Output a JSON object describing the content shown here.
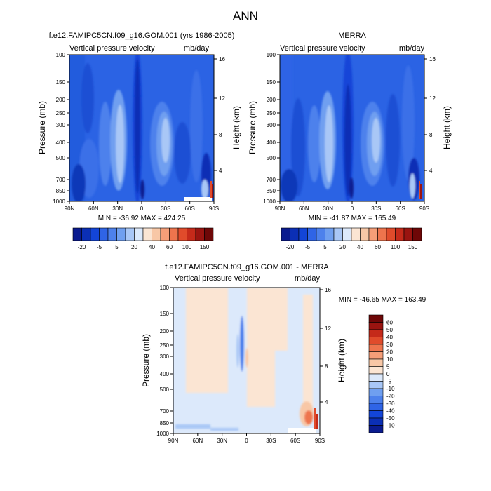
{
  "figure": {
    "title": "ANN",
    "panels": [
      {
        "id": "model",
        "title": "f.e12.FAMIPC5CN.f09_g16.GOM.001 (yrs 1986-2005)",
        "left_label": "Vertical pressure velocity",
        "right_label": "mb/day",
        "stats": "MIN = -36.92  MAX = 424.25",
        "palette": "abs"
      },
      {
        "id": "obs",
        "title": "MERRA",
        "left_label": "Vertical pressure velocity",
        "right_label": "mb/day",
        "stats": "MIN = -41.87  MAX = 165.49",
        "palette": "abs"
      },
      {
        "id": "diff",
        "title": "f.e12.FAMIPC5CN.f09_g16.GOM.001 - MERRA",
        "left_label": "Vertical pressure velocity",
        "right_label": "mb/day",
        "stats": "MIN = -46.65  MAX = 163.49",
        "palette": "diff"
      }
    ],
    "axes": {
      "ylabel": "Pressure (mb)",
      "y2label": "Height (km)",
      "xticks": [
        "90N",
        "60N",
        "30N",
        "0",
        "30S",
        "60S",
        "90S"
      ],
      "yticks": [
        "100",
        "150",
        "200",
        "250",
        "300",
        "400",
        "500",
        "700",
        "850",
        "1000"
      ],
      "y2ticks": [
        "16",
        "12",
        "8",
        "4"
      ]
    },
    "colorbars": {
      "abs": {
        "colors": [
          "#0a1b8f",
          "#0b2fb5",
          "#1345d8",
          "#2f64e6",
          "#4d81ec",
          "#6f9ff0",
          "#a9c7f6",
          "#dce9fb",
          "#fbe5d3",
          "#f8c7a6",
          "#f59e78",
          "#ee744d",
          "#e04b2b",
          "#c52a1a",
          "#9a1410",
          "#6e0707"
        ],
        "labels": [
          "-20",
          "-5",
          "5",
          "20",
          "40",
          "60",
          "100",
          "150"
        ]
      },
      "diff": {
        "colors": [
          "#6e0707",
          "#9a1410",
          "#c52a1a",
          "#e04b2b",
          "#ee744d",
          "#f59e78",
          "#f8c7a6",
          "#fbe5d3",
          "#dce9fb",
          "#a9c7f6",
          "#6f9ff0",
          "#4d81ec",
          "#2f64e6",
          "#1345d8",
          "#0b2fb5",
          "#0a1b8f"
        ],
        "labels": [
          "60",
          "50",
          "40",
          "30",
          "20",
          "10",
          "5",
          "0",
          "-5",
          "-10",
          "-20",
          "-30",
          "-40",
          "-50",
          "-60"
        ]
      }
    }
  },
  "chart_data": [
    {
      "type": "heatmap",
      "title": "f.e12.FAMIPC5CN.f09_g16.GOM.001 (yrs 1986-2005)",
      "variable": "Vertical pressure velocity",
      "units": "mb/day",
      "xlabel": "",
      "ylabel": "Pressure (mb)",
      "y2label": "Height (km)",
      "x": [
        "90N",
        "60N",
        "30N",
        "0",
        "30S",
        "60S",
        "90S"
      ],
      "y": [
        100,
        150,
        200,
        250,
        300,
        400,
        500,
        700,
        850,
        1000
      ],
      "min": -36.92,
      "max": 424.25
    },
    {
      "type": "heatmap",
      "title": "MERRA",
      "variable": "Vertical pressure velocity",
      "units": "mb/day",
      "xlabel": "",
      "ylabel": "Pressure (mb)",
      "y2label": "Height (km)",
      "x": [
        "90N",
        "60N",
        "30N",
        "0",
        "30S",
        "60S",
        "90S"
      ],
      "y": [
        100,
        150,
        200,
        250,
        300,
        400,
        500,
        700,
        850,
        1000
      ],
      "min": -41.87,
      "max": 165.49
    },
    {
      "type": "heatmap",
      "title": "f.e12.FAMIPC5CN.f09_g16.GOM.001 - MERRA",
      "variable": "Vertical pressure velocity",
      "units": "mb/day",
      "xlabel": "",
      "ylabel": "Pressure (mb)",
      "y2label": "Height (km)",
      "x": [
        "90N",
        "60N",
        "30N",
        "0",
        "30S",
        "60S",
        "90S"
      ],
      "y": [
        100,
        150,
        200,
        250,
        300,
        400,
        500,
        700,
        850,
        1000
      ],
      "min": -46.65,
      "max": 163.49
    }
  ]
}
